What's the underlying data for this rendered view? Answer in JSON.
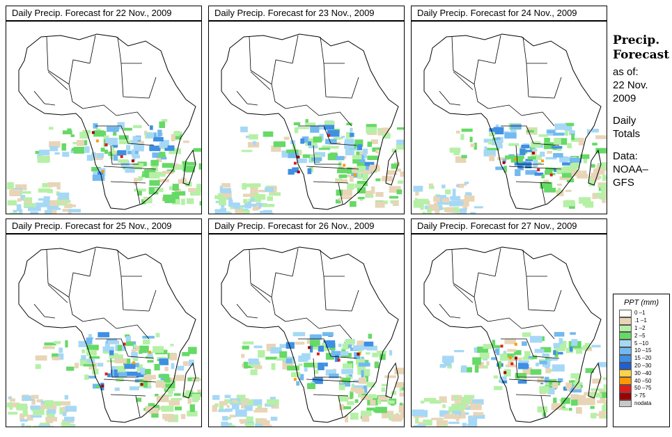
{
  "panels": [
    {
      "title": "Daily Precip. Forecast for  22 Nov., 2009"
    },
    {
      "title": "Daily Precip. Forecast for  23 Nov., 2009"
    },
    {
      "title": "Daily Precip. Forecast for  24 Nov., 2009"
    },
    {
      "title": "Daily Precip. Forecast for  25 Nov., 2009"
    },
    {
      "title": "Daily Precip. Forecast for  26 Nov., 2009"
    },
    {
      "title": "Daily Precip. Forecast for  27 Nov., 2009"
    }
  ],
  "side": {
    "heading1": "Precip.",
    "heading2": "Forecast",
    "asof1": "as of:",
    "asof2": "22 Nov.",
    "asof3": "2009",
    "daily1": "Daily",
    "daily2": "Totals",
    "data1": "Data:",
    "data2": "NOAA–",
    "data3": "GFS"
  },
  "legend": {
    "title": "PPT (mm)",
    "items": [
      {
        "label": "0 –1",
        "color": "#ffffff"
      },
      {
        "label": ".1 –1",
        "color": "#e8d5b7"
      },
      {
        "label": "1 –2",
        "color": "#b5f0a6"
      },
      {
        "label": "2 –5",
        "color": "#66d966"
      },
      {
        "label": "5 –10",
        "color": "#a6d8f5"
      },
      {
        "label": "10 –15",
        "color": "#73b9ef"
      },
      {
        "label": "15 –20",
        "color": "#3f8fe3"
      },
      {
        "label": "20 –30",
        "color": "#1f5fd6"
      },
      {
        "label": "30 –40",
        "color": "#ffd24a"
      },
      {
        "label": "40 –50",
        "color": "#ff9900"
      },
      {
        "label": "50 –75",
        "color": "#e01c1c"
      },
      {
        "label": "> 75",
        "color": "#a00000"
      },
      {
        "label": "nodata",
        "color": "#c8c8c8"
      }
    ]
  }
}
